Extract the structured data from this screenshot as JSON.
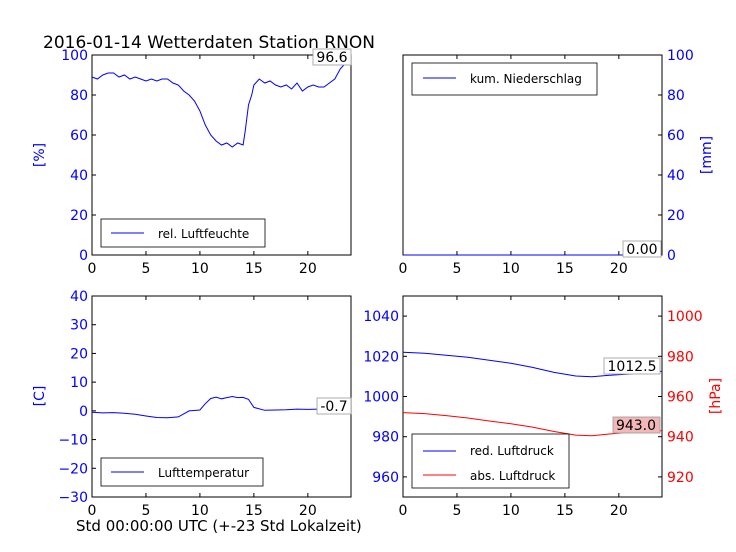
{
  "title": "2016-01-14 Wetterdaten Station RNON",
  "footer": "Std 00:00:00 UTC (+-23 Std Lokalzeit)",
  "colors": {
    "blue": "#0000ff",
    "red": "#ff0000",
    "box": "#999999",
    "pink": "#f2b8b8"
  },
  "chart_data": [
    {
      "type": "line",
      "position": "top-left",
      "ylabel": "[%]",
      "xlim": [
        0,
        24
      ],
      "ylim": [
        0,
        100
      ],
      "xticks": [
        "0",
        "5",
        "10",
        "15",
        "20"
      ],
      "yticks": [
        "0",
        "20",
        "40",
        "60",
        "80",
        "100"
      ],
      "legend_loc": "bottom-left",
      "series": [
        {
          "name": "rel. Luftfeuchte",
          "color": "blue",
          "x": [
            0,
            0.5,
            1,
            1.5,
            2,
            2.5,
            3,
            3.5,
            4,
            4.5,
            5,
            5.5,
            6,
            6.5,
            7,
            7.5,
            8,
            8.5,
            9,
            9.5,
            10,
            10.5,
            11,
            11.5,
            12,
            12.5,
            13,
            13.5,
            14,
            14.2,
            14.5,
            14.8,
            15,
            15.5,
            16,
            16.5,
            17,
            17.5,
            18,
            18.5,
            19,
            19.5,
            20,
            20.5,
            21,
            21.5,
            22,
            22.5,
            23,
            23.5,
            24
          ],
          "y": [
            89,
            88,
            90,
            91,
            91,
            89,
            90,
            88,
            89,
            88,
            87,
            88,
            87,
            88,
            88,
            86,
            85,
            82,
            80,
            77,
            72,
            65,
            60,
            57,
            55,
            56,
            54,
            56,
            55,
            62,
            75,
            80,
            85,
            88,
            86,
            87,
            85,
            84,
            85,
            83,
            86,
            82,
            84,
            85,
            84,
            84,
            86,
            88,
            93,
            96,
            96.6
          ]
        }
      ],
      "annotation": "96.6"
    },
    {
      "type": "line",
      "position": "top-right",
      "ylabel": "[mm]",
      "xlim": [
        0,
        24
      ],
      "ylim": [
        0,
        100
      ],
      "xticks": [
        "0",
        "5",
        "10",
        "15",
        "20"
      ],
      "yticks": [
        "0",
        "20",
        "40",
        "60",
        "80",
        "100"
      ],
      "legend_loc": "top-left",
      "series": [
        {
          "name": "kum. Niederschlag",
          "color": "blue",
          "x": [
            0,
            24
          ],
          "y": [
            0,
            0
          ]
        }
      ],
      "annotation": "0.00"
    },
    {
      "type": "line",
      "position": "bottom-left",
      "ylabel": "[C]",
      "xlim": [
        0,
        24
      ],
      "ylim": [
        -30,
        40
      ],
      "xticks": [
        "0",
        "5",
        "10",
        "15",
        "20"
      ],
      "yticks": [
        "−30",
        "−20",
        "−10",
        "0",
        "10",
        "20",
        "30",
        "40"
      ],
      "legend_loc": "bottom-left",
      "series": [
        {
          "name": "Lufttemperatur",
          "color": "blue",
          "x": [
            0,
            1,
            2,
            3,
            4,
            5,
            6,
            7,
            8,
            9,
            10,
            10.5,
            11,
            11.5,
            12,
            12.5,
            13,
            13.5,
            14,
            14.5,
            15,
            16,
            17,
            18,
            19,
            20,
            21,
            22,
            23,
            24
          ],
          "y": [
            -0.5,
            -0.7,
            -0.6,
            -0.8,
            -1.2,
            -1.8,
            -2.3,
            -2.4,
            -2.1,
            0,
            0.3,
            2.5,
            4.3,
            4.8,
            4.2,
            4.6,
            5.0,
            4.6,
            4.7,
            4.0,
            1.2,
            0.2,
            0.3,
            0.4,
            0.6,
            0.5,
            0.6,
            0.7,
            0.6,
            -0.7
          ]
        }
      ],
      "annotation": "-0.7"
    },
    {
      "type": "line",
      "position": "bottom-right",
      "ylabel": "[hPa]",
      "xlim": [
        0,
        24
      ],
      "ylim_left": [
        950,
        1050
      ],
      "ylim_right": [
        910,
        1010
      ],
      "xticks": [
        "0",
        "5",
        "10",
        "15",
        "20"
      ],
      "yticks_left": [
        "960",
        "980",
        "1000",
        "1020",
        "1040"
      ],
      "yticks_right": [
        "920",
        "940",
        "960",
        "980",
        "1000"
      ],
      "legend_loc": "bottom-left",
      "series": [
        {
          "name": "red. Luftdruck",
          "color": "blue",
          "axis": "left",
          "x": [
            0,
            2,
            4,
            6,
            8,
            10,
            12,
            14,
            16,
            17.5,
            19,
            21,
            23,
            24
          ],
          "y": [
            1022,
            1021.5,
            1020.5,
            1019.5,
            1018,
            1016.5,
            1014.5,
            1012,
            1010.2,
            1009.8,
            1010.5,
            1011.2,
            1012.5,
            1012.5
          ]
        },
        {
          "name": "abs. Luftdruck",
          "color": "red",
          "axis": "right",
          "x": [
            0,
            2,
            4,
            6,
            8,
            10,
            12,
            14,
            16,
            17.5,
            19,
            21,
            23,
            24
          ],
          "y": [
            952,
            951.5,
            950.5,
            949.3,
            947.8,
            946.4,
            944.8,
            942.6,
            940.8,
            940.5,
            941.3,
            942.2,
            943,
            943.0
          ]
        }
      ],
      "annotations": [
        "1012.5",
        "943.0"
      ]
    }
  ]
}
